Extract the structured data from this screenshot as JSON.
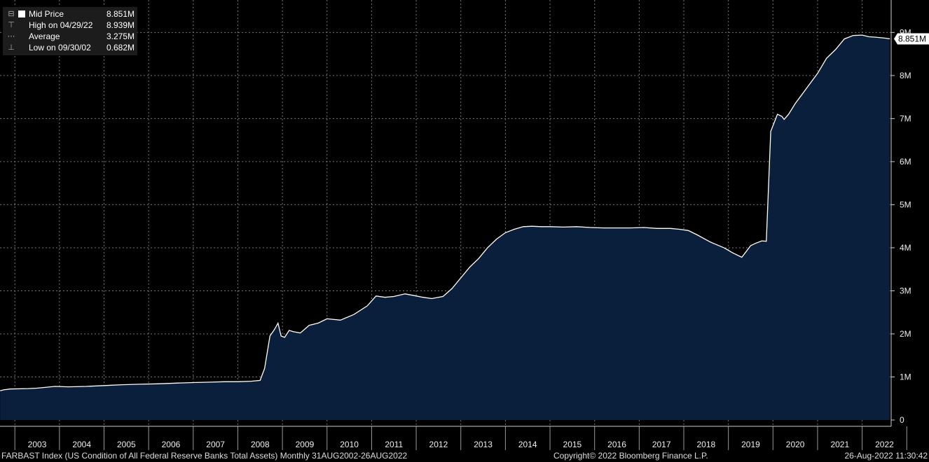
{
  "legend": {
    "mid": {
      "label": "Mid Price",
      "value": "8.851M"
    },
    "high": {
      "label": "High on 04/29/22",
      "value": "8.939M"
    },
    "avg": {
      "label": "Average",
      "value": "3.275M"
    },
    "low": {
      "label": "Low on 09/30/02",
      "value": "0.682M"
    }
  },
  "last_value_label": "8.851M",
  "footer": {
    "left": "FARBAST Index (US Condition of All Federal Reserve Banks Total Assets)  Monthly 31AUG2002-26AUG2022",
    "center": "Copyright© 2022 Bloomberg Finance L.P.",
    "right": "26-Aug-2022 11:30:42"
  },
  "colors": {
    "background": "#000000",
    "area_fill": "#0a1f3c",
    "line": "#ffffff",
    "grid": "#888888",
    "label_bg": "#ffffff"
  },
  "chart_data": {
    "type": "area",
    "xlim": [
      2002.667,
      2022.65
    ],
    "ylim": [
      0,
      9.9
    ],
    "y_tick_labels": [
      "0",
      "1M",
      "2M",
      "3M",
      "4M",
      "5M",
      "6M",
      "7M",
      "8M",
      "9M"
    ],
    "x_tick_labels": [
      "2003",
      "2004",
      "2005",
      "2006",
      "2007",
      "2008",
      "2009",
      "2010",
      "2011",
      "2012",
      "2013",
      "2014",
      "2015",
      "2016",
      "2017",
      "2018",
      "2019",
      "2020",
      "2021",
      "2022"
    ],
    "series": [
      {
        "values_in": "millions",
        "x": [
          2002.67,
          2002.75,
          2002.9,
          2003.3,
          2003.5,
          2003.9,
          2004.2,
          2004.6,
          2005.0,
          2005.4,
          2005.8,
          2006.2,
          2006.7,
          2007.0,
          2007.4,
          2007.7,
          2008.0,
          2008.3,
          2008.5,
          2008.6,
          2008.72,
          2008.82,
          2008.9,
          2008.97,
          2009.05,
          2009.15,
          2009.25,
          2009.4,
          2009.6,
          2009.8,
          2010.0,
          2010.3,
          2010.6,
          2010.9,
          2011.1,
          2011.3,
          2011.5,
          2011.75,
          2012.0,
          2012.15,
          2012.35,
          2012.6,
          2012.8,
          2013.0,
          2013.2,
          2013.4,
          2013.6,
          2013.8,
          2014.0,
          2014.2,
          2014.4,
          2014.6,
          2014.8,
          2015.0,
          2015.3,
          2015.6,
          2015.9,
          2016.2,
          2016.5,
          2016.8,
          2017.1,
          2017.4,
          2017.7,
          2017.9,
          2018.1,
          2018.3,
          2018.6,
          2018.9,
          2019.1,
          2019.3,
          2019.5,
          2019.6,
          2019.75,
          2019.85,
          2019.95,
          2020.1,
          2020.2,
          2020.25,
          2020.35,
          2020.5,
          2020.75,
          2021.0,
          2021.2,
          2021.4,
          2021.6,
          2021.8,
          2022.0,
          2022.15,
          2022.3,
          2022.5,
          2022.62
        ],
        "y": [
          0.68,
          0.7,
          0.72,
          0.73,
          0.74,
          0.78,
          0.77,
          0.78,
          0.8,
          0.82,
          0.83,
          0.84,
          0.86,
          0.87,
          0.88,
          0.89,
          0.89,
          0.9,
          0.92,
          1.2,
          1.95,
          2.1,
          2.25,
          1.95,
          1.92,
          2.08,
          2.05,
          2.02,
          2.2,
          2.25,
          2.35,
          2.32,
          2.45,
          2.65,
          2.88,
          2.85,
          2.87,
          2.93,
          2.88,
          2.85,
          2.82,
          2.87,
          3.05,
          3.3,
          3.55,
          3.75,
          4.0,
          4.2,
          4.35,
          4.43,
          4.49,
          4.5,
          4.49,
          4.49,
          4.48,
          4.49,
          4.47,
          4.46,
          4.46,
          4.46,
          4.47,
          4.45,
          4.45,
          4.43,
          4.4,
          4.3,
          4.13,
          4.0,
          3.88,
          3.78,
          4.05,
          4.1,
          4.16,
          4.15,
          6.7,
          7.1,
          7.05,
          6.98,
          7.1,
          7.35,
          7.7,
          8.05,
          8.4,
          8.6,
          8.85,
          8.93,
          8.94,
          8.9,
          8.89,
          8.87,
          8.851
        ]
      }
    ]
  }
}
